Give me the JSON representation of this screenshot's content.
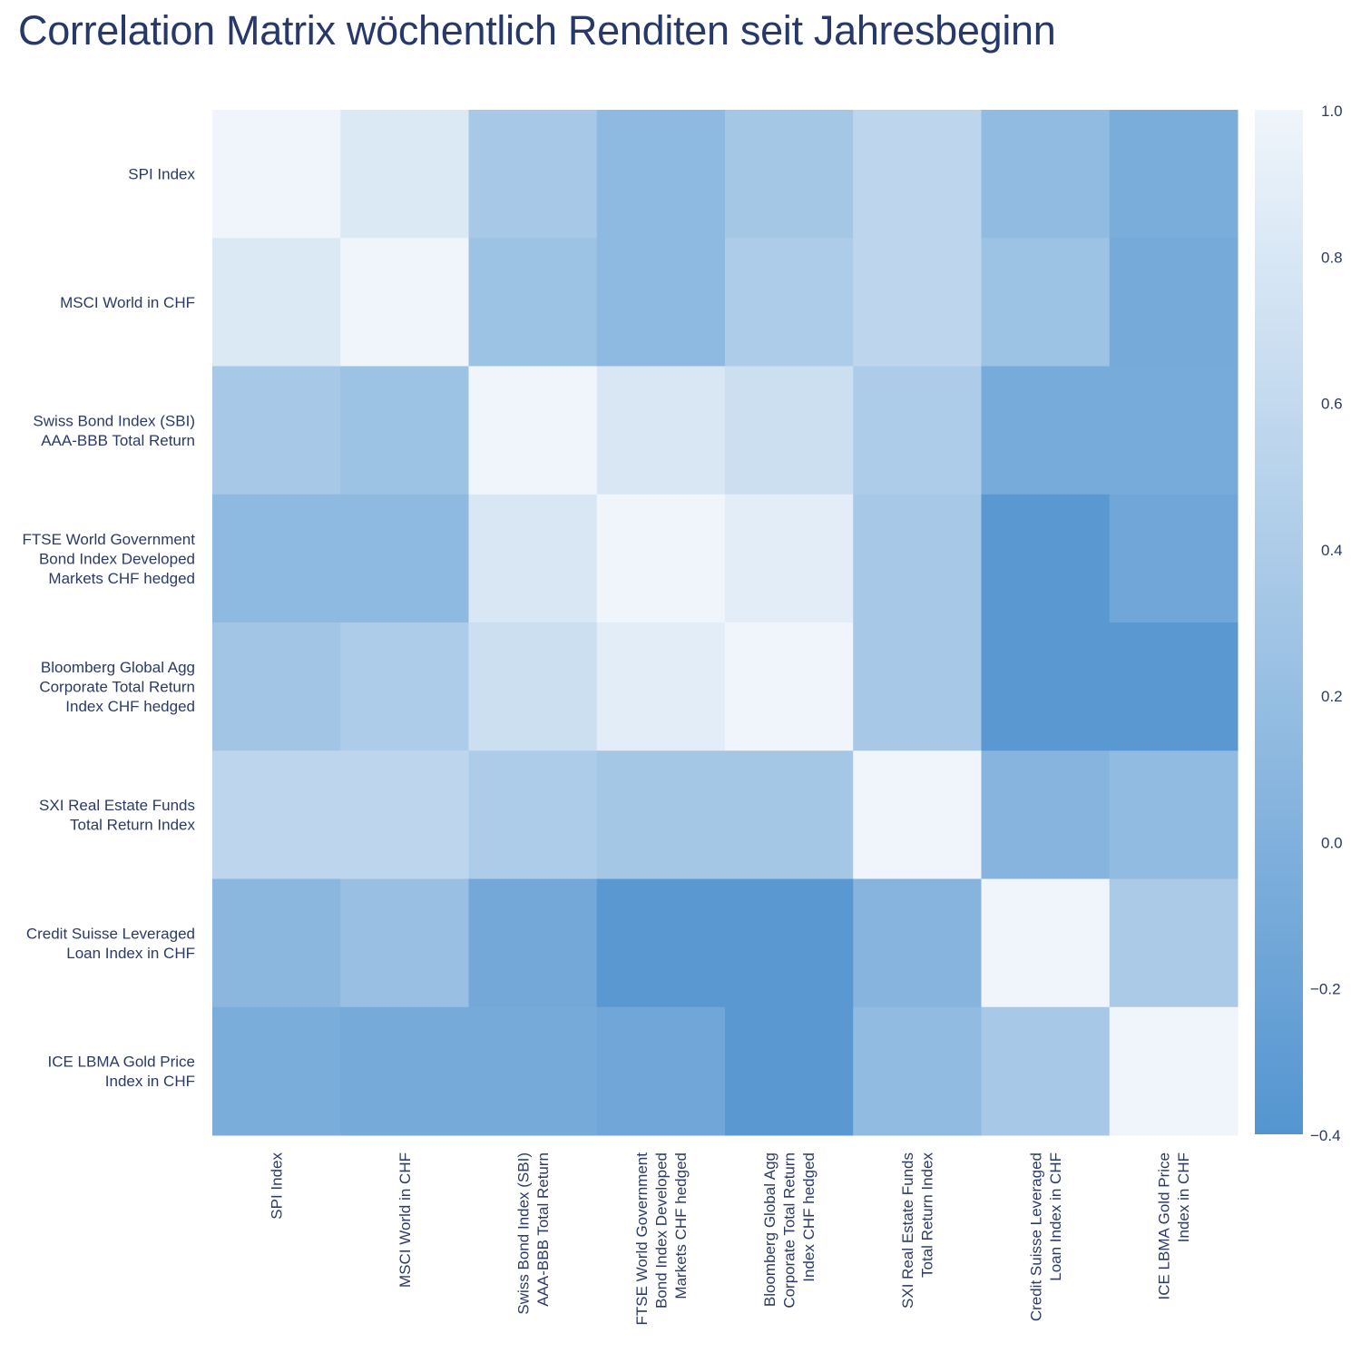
{
  "chart_data": {
    "type": "heatmap",
    "title": "Correlation Matrix wöchentlich Renditen seit Jahresbeginn",
    "labels": [
      [
        "SPI Index"
      ],
      [
        "MSCI World in CHF"
      ],
      [
        "Swiss Bond Index (SBI)",
        "AAA-BBB Total Return"
      ],
      [
        "FTSE World Government",
        "Bond Index Developed",
        "Markets CHF hedged"
      ],
      [
        "Bloomberg Global Agg",
        "Corporate Total Return",
        "Index CHF hedged"
      ],
      [
        "SXI Real Estate Funds",
        "Total Return Index"
      ],
      [
        "Credit Suisse Leveraged",
        "Loan Index in CHF"
      ],
      [
        "ICE LBMA Gold Price",
        "Index in CHF"
      ]
    ],
    "values": [
      [
        1.0,
        0.82,
        0.35,
        0.12,
        0.33,
        0.55,
        0.15,
        -0.05
      ],
      [
        0.82,
        1.0,
        0.25,
        0.12,
        0.4,
        0.55,
        0.25,
        -0.1
      ],
      [
        0.35,
        0.25,
        1.0,
        0.8,
        0.68,
        0.4,
        -0.08,
        -0.08
      ],
      [
        0.12,
        0.12,
        0.8,
        1.0,
        0.88,
        0.35,
        -0.35,
        -0.15
      ],
      [
        0.3,
        0.4,
        0.68,
        0.88,
        1.0,
        0.35,
        -0.35,
        -0.35
      ],
      [
        0.55,
        0.55,
        0.4,
        0.33,
        0.33,
        1.0,
        0.05,
        0.15
      ],
      [
        0.1,
        0.22,
        -0.12,
        -0.35,
        -0.35,
        0.05,
        1.0,
        0.38
      ],
      [
        -0.05,
        -0.1,
        -0.1,
        -0.15,
        -0.35,
        0.15,
        0.35,
        1.0
      ]
    ],
    "colorbar": {
      "range": [
        -0.4,
        1.0
      ],
      "ticks": [
        "1.0",
        "0.8",
        "0.6",
        "0.4",
        "0.2",
        "0.0",
        "−0.2",
        "−0.4"
      ],
      "tick_values": [
        1.0,
        0.8,
        0.6,
        0.4,
        0.2,
        0.0,
        -0.2,
        -0.4
      ],
      "color_low": "#5495d0",
      "color_high": "#eff5fb"
    },
    "text_color": "#2b3a67"
  }
}
